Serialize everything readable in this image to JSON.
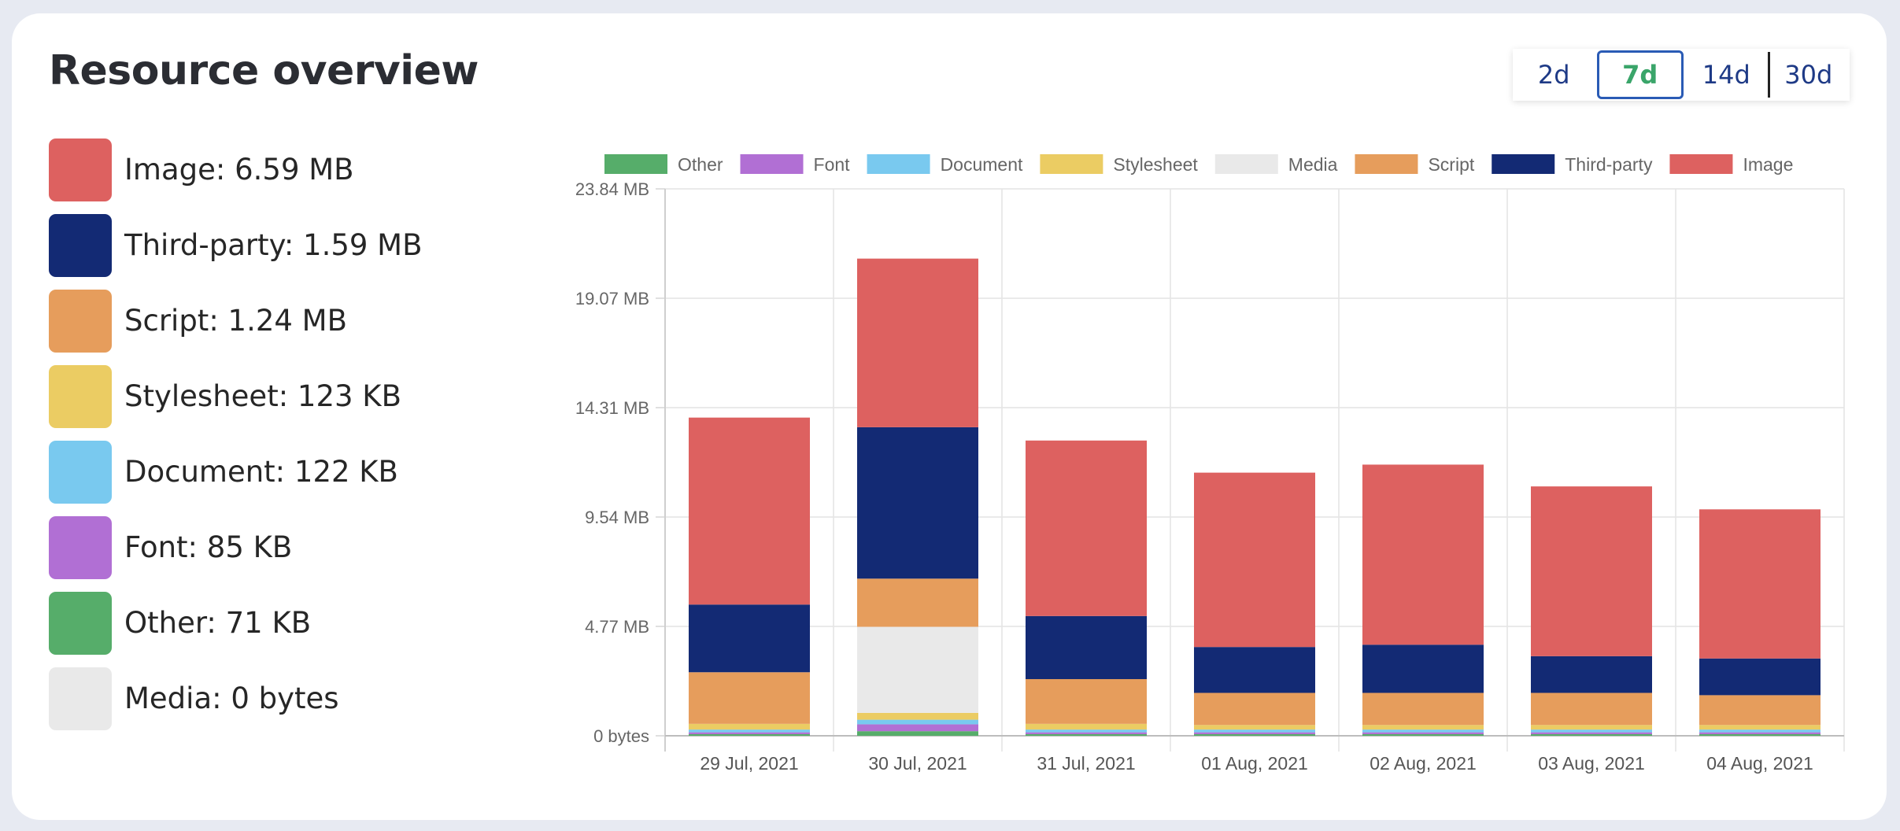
{
  "page": {
    "title": "Resource overview"
  },
  "range": {
    "options": [
      "2d",
      "7d",
      "14d",
      "30d"
    ],
    "selected": "7d"
  },
  "summary": [
    {
      "label": "Image: 6.59 MB",
      "color": "#dd6160"
    },
    {
      "label": "Third-party: 1.59 MB",
      "color": "#132a74"
    },
    {
      "label": "Script: 1.24 MB",
      "color": "#e69d5c"
    },
    {
      "label": "Stylesheet: 123 KB",
      "color": "#ebcc63"
    },
    {
      "label": "Document: 122 KB",
      "color": "#79c9ef"
    },
    {
      "label": "Font: 85 KB",
      "color": "#b16fd4"
    },
    {
      "label": "Other: 71 KB",
      "color": "#56ad6a"
    },
    {
      "label": "Media: 0 bytes",
      "color": "#e9e9e9"
    }
  ],
  "chart_data": {
    "type": "bar",
    "stacked": true,
    "categories": [
      "29 Jul, 2021",
      "30 Jul, 2021",
      "31 Jul, 2021",
      "01 Aug, 2021",
      "02 Aug, 2021",
      "03 Aug, 2021",
      "04 Aug, 2021"
    ],
    "series": [
      {
        "name": "Other",
        "color": "#56ad6a",
        "values": [
          0.07,
          0.2,
          0.07,
          0.07,
          0.07,
          0.07,
          0.07
        ]
      },
      {
        "name": "Font",
        "color": "#b16fd4",
        "values": [
          0.08,
          0.3,
          0.08,
          0.08,
          0.08,
          0.08,
          0.08
        ]
      },
      {
        "name": "Document",
        "color": "#79c9ef",
        "values": [
          0.12,
          0.2,
          0.12,
          0.12,
          0.12,
          0.12,
          0.12
        ]
      },
      {
        "name": "Stylesheet",
        "color": "#ebcc63",
        "values": [
          0.25,
          0.3,
          0.25,
          0.2,
          0.2,
          0.2,
          0.2
        ]
      },
      {
        "name": "Media",
        "color": "#e9e9e9",
        "values": [
          0,
          3.75,
          0,
          0,
          0,
          0,
          0
        ]
      },
      {
        "name": "Script",
        "color": "#e69d5c",
        "values": [
          2.25,
          2.1,
          1.95,
          1.4,
          1.4,
          1.4,
          1.3
        ]
      },
      {
        "name": "Third-party",
        "color": "#132a74",
        "values": [
          2.95,
          6.6,
          2.75,
          2.0,
          2.1,
          1.6,
          1.6
        ]
      },
      {
        "name": "Image",
        "color": "#dd6160",
        "values": [
          8.15,
          7.35,
          7.65,
          7.6,
          7.85,
          7.4,
          6.5
        ]
      }
    ],
    "y_ticks": [
      "0 bytes",
      "4.77 MB",
      "9.54 MB",
      "14.31 MB",
      "19.07 MB",
      "23.84 MB"
    ],
    "ylim": [
      0,
      23.84
    ],
    "ylabel": "",
    "xlabel": "",
    "legend_order": [
      "Other",
      "Font",
      "Document",
      "Stylesheet",
      "Media",
      "Script",
      "Third-party",
      "Image"
    ],
    "legend_position": "top",
    "grid": true
  }
}
